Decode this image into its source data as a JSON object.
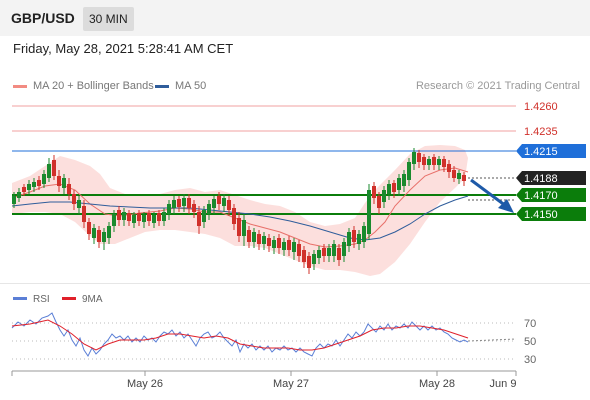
{
  "header": {
    "symbol": "GBP/USD",
    "interval": "30 MIN"
  },
  "datetime": "Friday, May 28, 2021 5:28:41 AM CET",
  "legend": {
    "items": [
      {
        "label": "MA 20 + Bollinger Bands",
        "color": "#f28b82"
      },
      {
        "label": "MA 50",
        "color": "#2f5d9b"
      }
    ],
    "credit": "Research © 2021 Trading Central"
  },
  "price_levels": [
    {
      "label": "1.4260",
      "kind": "resistance"
    },
    {
      "label": "1.4235",
      "kind": "resistance"
    },
    {
      "label": "1.4215",
      "kind": "pivot"
    },
    {
      "label": "1.4188",
      "kind": "last"
    },
    {
      "label": "1.4170",
      "kind": "support"
    },
    {
      "label": "1.4150",
      "kind": "support"
    }
  ],
  "rsi_legend": [
    {
      "label": "RSI",
      "color": "#5b7fd6"
    },
    {
      "label": "9MA",
      "color": "#e0202a"
    }
  ],
  "rsi_levels": [
    "70",
    "50",
    "30"
  ],
  "x_labels": [
    "May 26",
    "May 27",
    "May 28",
    "Jun 9"
  ],
  "colors": {
    "bull": "#1a8a2e",
    "bear": "#d0302a",
    "pivot": "#1f6fd9",
    "support": "#0b7d0b",
    "last": "#222222",
    "arrow": "#1e5aa8"
  }
}
